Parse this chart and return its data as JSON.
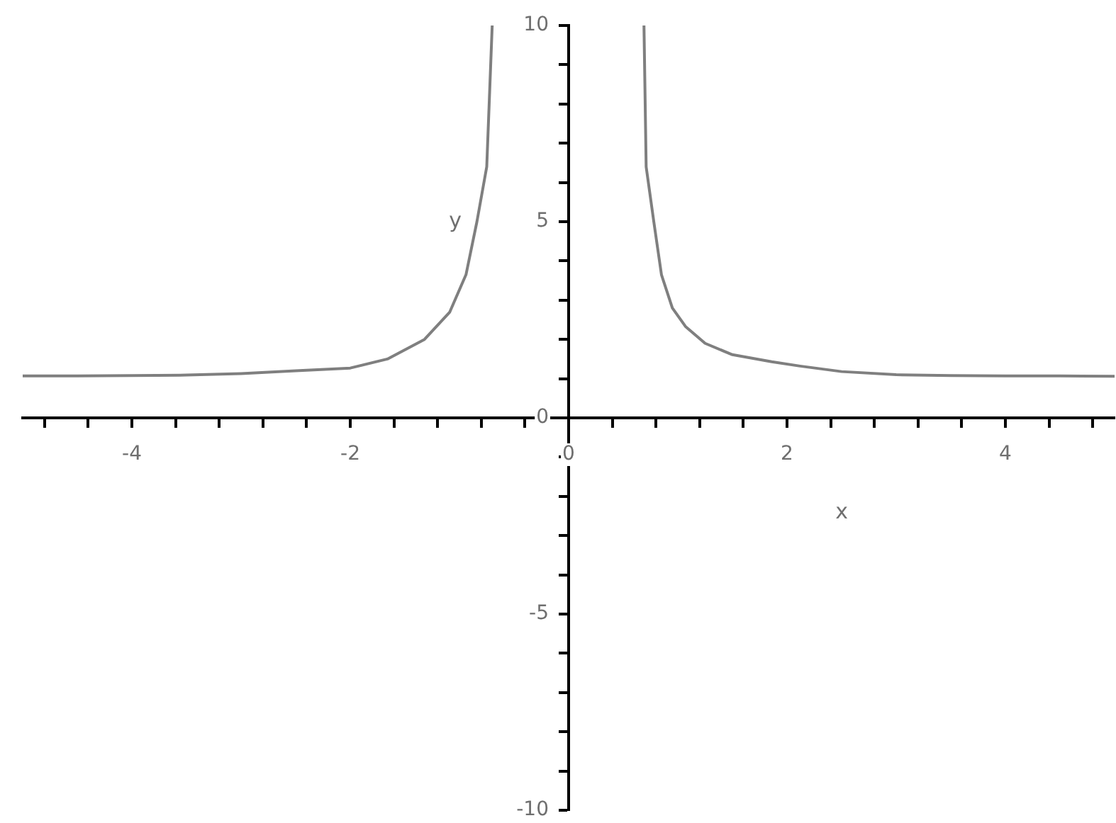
{
  "chart_data": {
    "type": "line",
    "xlabel": "x",
    "ylabel": "y",
    "x": [
      -5,
      -4.5,
      -4,
      -3.5,
      -3,
      -2.5,
      -2,
      -1.66,
      -1.32,
      -1.09,
      -0.94,
      -0.84,
      -0.75,
      -0.7,
      0,
      0.69,
      0.71,
      0.78,
      0.85,
      0.95,
      1.07,
      1.25,
      1.5,
      1.86,
      2.12,
      2.5,
      3,
      3.5,
      4,
      4.5,
      5
    ],
    "series": [
      {
        "color": "#7f7f7f",
        "values": [
          1.07,
          1.07,
          1.08,
          1.09,
          1.13,
          1.2,
          1.27,
          1.5,
          2.0,
          2.69,
          3.65,
          5,
          6.4,
          10,
          null,
          10,
          6.4,
          5,
          3.65,
          2.8,
          2.33,
          1.9,
          1.61,
          1.43,
          1.32,
          1.18,
          1.1,
          1.08,
          1.07,
          1.07,
          1.06
        ]
      }
    ],
    "xlim": [
      -5,
      5
    ],
    "xticks": [
      {
        "value": -4.8,
        "label": null
      },
      {
        "value": -4.4,
        "label": null
      },
      -4,
      {
        "value": -3.6,
        "label": null
      },
      {
        "value": -3.2,
        "label": null
      },
      {
        "value": -2.8,
        "label": null
      },
      {
        "value": -2.4,
        "label": null
      },
      -2,
      {
        "value": -1.6,
        "label": null
      },
      {
        "value": -1.2,
        "label": null
      },
      {
        "value": -0.8,
        "label": null
      },
      {
        "value": -0.4,
        "label": null
      },
      0,
      {
        "value": 0.4,
        "label": null
      },
      {
        "value": 0.8,
        "label": null
      },
      {
        "value": 1.2,
        "label": null
      },
      {
        "value": 1.6,
        "label": null
      },
      2,
      {
        "value": 2.4,
        "label": null
      },
      {
        "value": 2.8,
        "label": null
      },
      {
        "value": 3.2,
        "label": null
      },
      {
        "value": 3.6,
        "label": null
      },
      4,
      {
        "value": 4.4,
        "label": null
      },
      {
        "value": 4.8,
        "label": null
      }
    ],
    "ylim": [
      -10,
      10
    ],
    "yticks": [
      -10,
      {
        "value": -9,
        "label": null
      },
      {
        "value": -8,
        "label": null
      },
      {
        "value": -7,
        "label": null
      },
      {
        "value": -6,
        "label": null
      },
      -5,
      {
        "value": -4,
        "label": null
      },
      {
        "value": -3,
        "label": null
      },
      {
        "value": -2,
        "label": null
      },
      {
        "value": -1,
        "label": null
      },
      0,
      {
        "value": 1,
        "label": null
      },
      {
        "value": 2,
        "label": null
      },
      {
        "value": 3,
        "label": null
      },
      {
        "value": 4,
        "label": null
      },
      5,
      {
        "value": 6,
        "label": null
      },
      {
        "value": 7,
        "label": null
      },
      {
        "value": 8,
        "label": null
      },
      {
        "value": 9,
        "label": null
      },
      10
    ],
    "grid": false,
    "legend": false,
    "marker": "none",
    "line_style": "solid"
  }
}
